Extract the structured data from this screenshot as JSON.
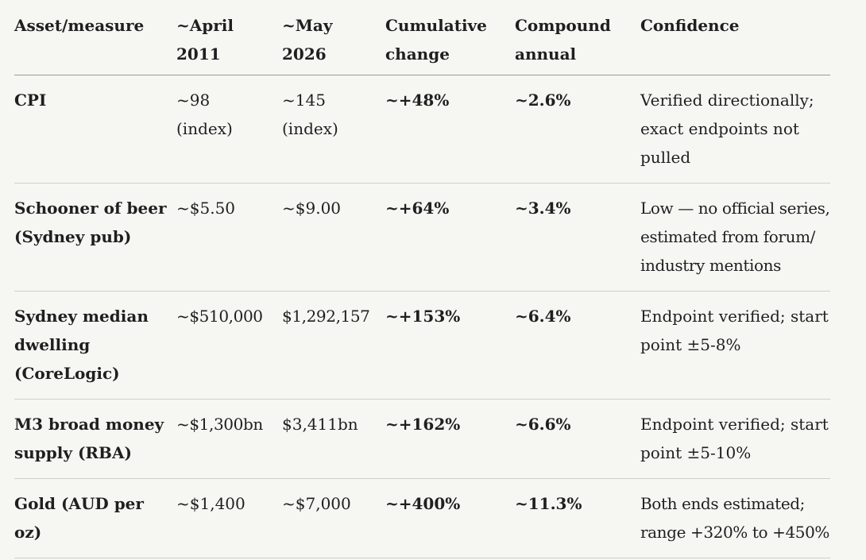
{
  "table": {
    "headers": [
      "Asset/measure",
      "~April\n2011",
      "~May\n2026",
      "Cumulative\nchange",
      "Compound\nannual",
      "Confidence"
    ],
    "rows": [
      {
        "asset": "CPI",
        "april_2011": "~98\n(index)",
        "may_2026": "~145\n(index)",
        "cumulative": "~+48%",
        "compound": "~2.6%",
        "confidence": "Verified directionally;\nexact endpoints not\npulled"
      },
      {
        "asset": "Schooner of beer\n(Sydney pub)",
        "april_2011": "~$5.50",
        "may_2026": "~$9.00",
        "cumulative": "~+64%",
        "compound": "~3.4%",
        "confidence": "Low — no official series,\nestimated from forum/\nindustry mentions"
      },
      {
        "asset": "Sydney median\ndwelling\n(CoreLogic)",
        "april_2011": "~$510,000",
        "may_2026": "$1,292,157",
        "cumulative": "~+153%",
        "compound": "~6.4%",
        "confidence": "Endpoint verified; start\npoint ±5-8%"
      },
      {
        "asset": "M3 broad money\nsupply (RBA)",
        "april_2011": "~$1,300bn",
        "may_2026": "$3,411bn",
        "cumulative": "~+162%",
        "compound": "~6.6%",
        "confidence": "Endpoint verified; start\npoint ±5-10%"
      },
      {
        "asset": "Gold (AUD per\noz)",
        "april_2011": "~$1,400",
        "may_2026": "~$7,000",
        "cumulative": "~+400%",
        "compound": "~11.3%",
        "confidence": "Both ends estimated;\nrange +320% to +450%"
      }
    ]
  },
  "colors": {
    "background": "#f6f6f3",
    "text": "#1f1f1f",
    "header_rule": "#9a9a9a",
    "row_rule": "#cfcfcc"
  }
}
